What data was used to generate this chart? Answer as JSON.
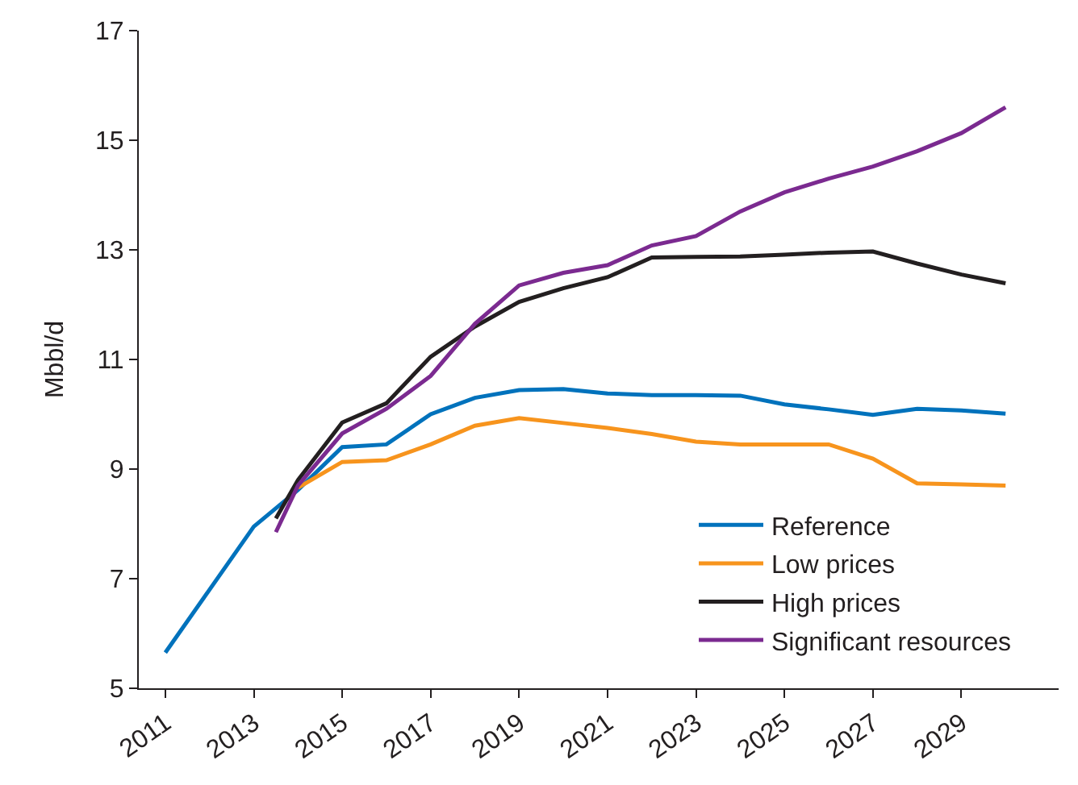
{
  "chart_data": {
    "type": "line",
    "ylabel": "Mbbl/d",
    "xlim": [
      2010.4,
      2031.2
    ],
    "xticks": [
      2011,
      2013,
      2015,
      2017,
      2019,
      2021,
      2023,
      2025,
      2027,
      2029
    ],
    "ylim": [
      5,
      17
    ],
    "yticks": [
      5,
      7,
      9,
      11,
      13,
      15,
      17
    ],
    "legend": "bottom right",
    "marker": "none",
    "line_style": "solid",
    "series": [
      {
        "name": "Reference",
        "color": "#0072bc",
        "x": [
          2011,
          2012,
          2013,
          2014,
          2015,
          2016,
          2017,
          2018,
          2019,
          2020,
          2021,
          2022,
          2023,
          2024,
          2025,
          2026,
          2027,
          2028,
          2029,
          2030
        ],
        "values": [
          5.65,
          6.8,
          7.95,
          8.62,
          9.4,
          9.45,
          10.0,
          10.3,
          10.44,
          10.46,
          10.38,
          10.35,
          10.35,
          10.34,
          10.18,
          10.09,
          9.99,
          10.1,
          10.07,
          10.01
        ]
      },
      {
        "name": "Low prices",
        "color": "#f7941d",
        "x": [
          2014,
          2015,
          2016,
          2017,
          2018,
          2019,
          2020,
          2021,
          2022,
          2023,
          2024,
          2025,
          2026,
          2027,
          2028,
          2029,
          2030
        ],
        "values": [
          8.66,
          9.13,
          9.16,
          9.45,
          9.79,
          9.93,
          9.84,
          9.75,
          9.64,
          9.5,
          9.45,
          9.45,
          9.45,
          9.19,
          8.74,
          8.72,
          8.7
        ]
      },
      {
        "name": "High prices",
        "color": "#231f20",
        "x": [
          2013.5,
          2014,
          2015,
          2016,
          2017,
          2018,
          2019,
          2020,
          2021,
          2022,
          2023,
          2024,
          2025,
          2026,
          2027,
          2028,
          2029,
          2030
        ],
        "values": [
          8.1,
          8.8,
          9.85,
          10.2,
          11.05,
          11.6,
          12.05,
          12.3,
          12.5,
          12.86,
          12.87,
          12.88,
          12.91,
          12.95,
          12.97,
          12.75,
          12.55,
          12.39
        ]
      },
      {
        "name": "Significant resources",
        "color": "#7b2a90",
        "x": [
          2013.5,
          2014,
          2015,
          2016,
          2017,
          2018,
          2019,
          2020,
          2021,
          2022,
          2023,
          2024,
          2025,
          2026,
          2027,
          2028,
          2029,
          2030
        ],
        "values": [
          7.85,
          8.7,
          9.65,
          10.1,
          10.7,
          11.65,
          12.35,
          12.58,
          12.72,
          13.08,
          13.25,
          13.7,
          14.05,
          14.3,
          14.52,
          14.8,
          15.13,
          15.6
        ]
      }
    ]
  }
}
